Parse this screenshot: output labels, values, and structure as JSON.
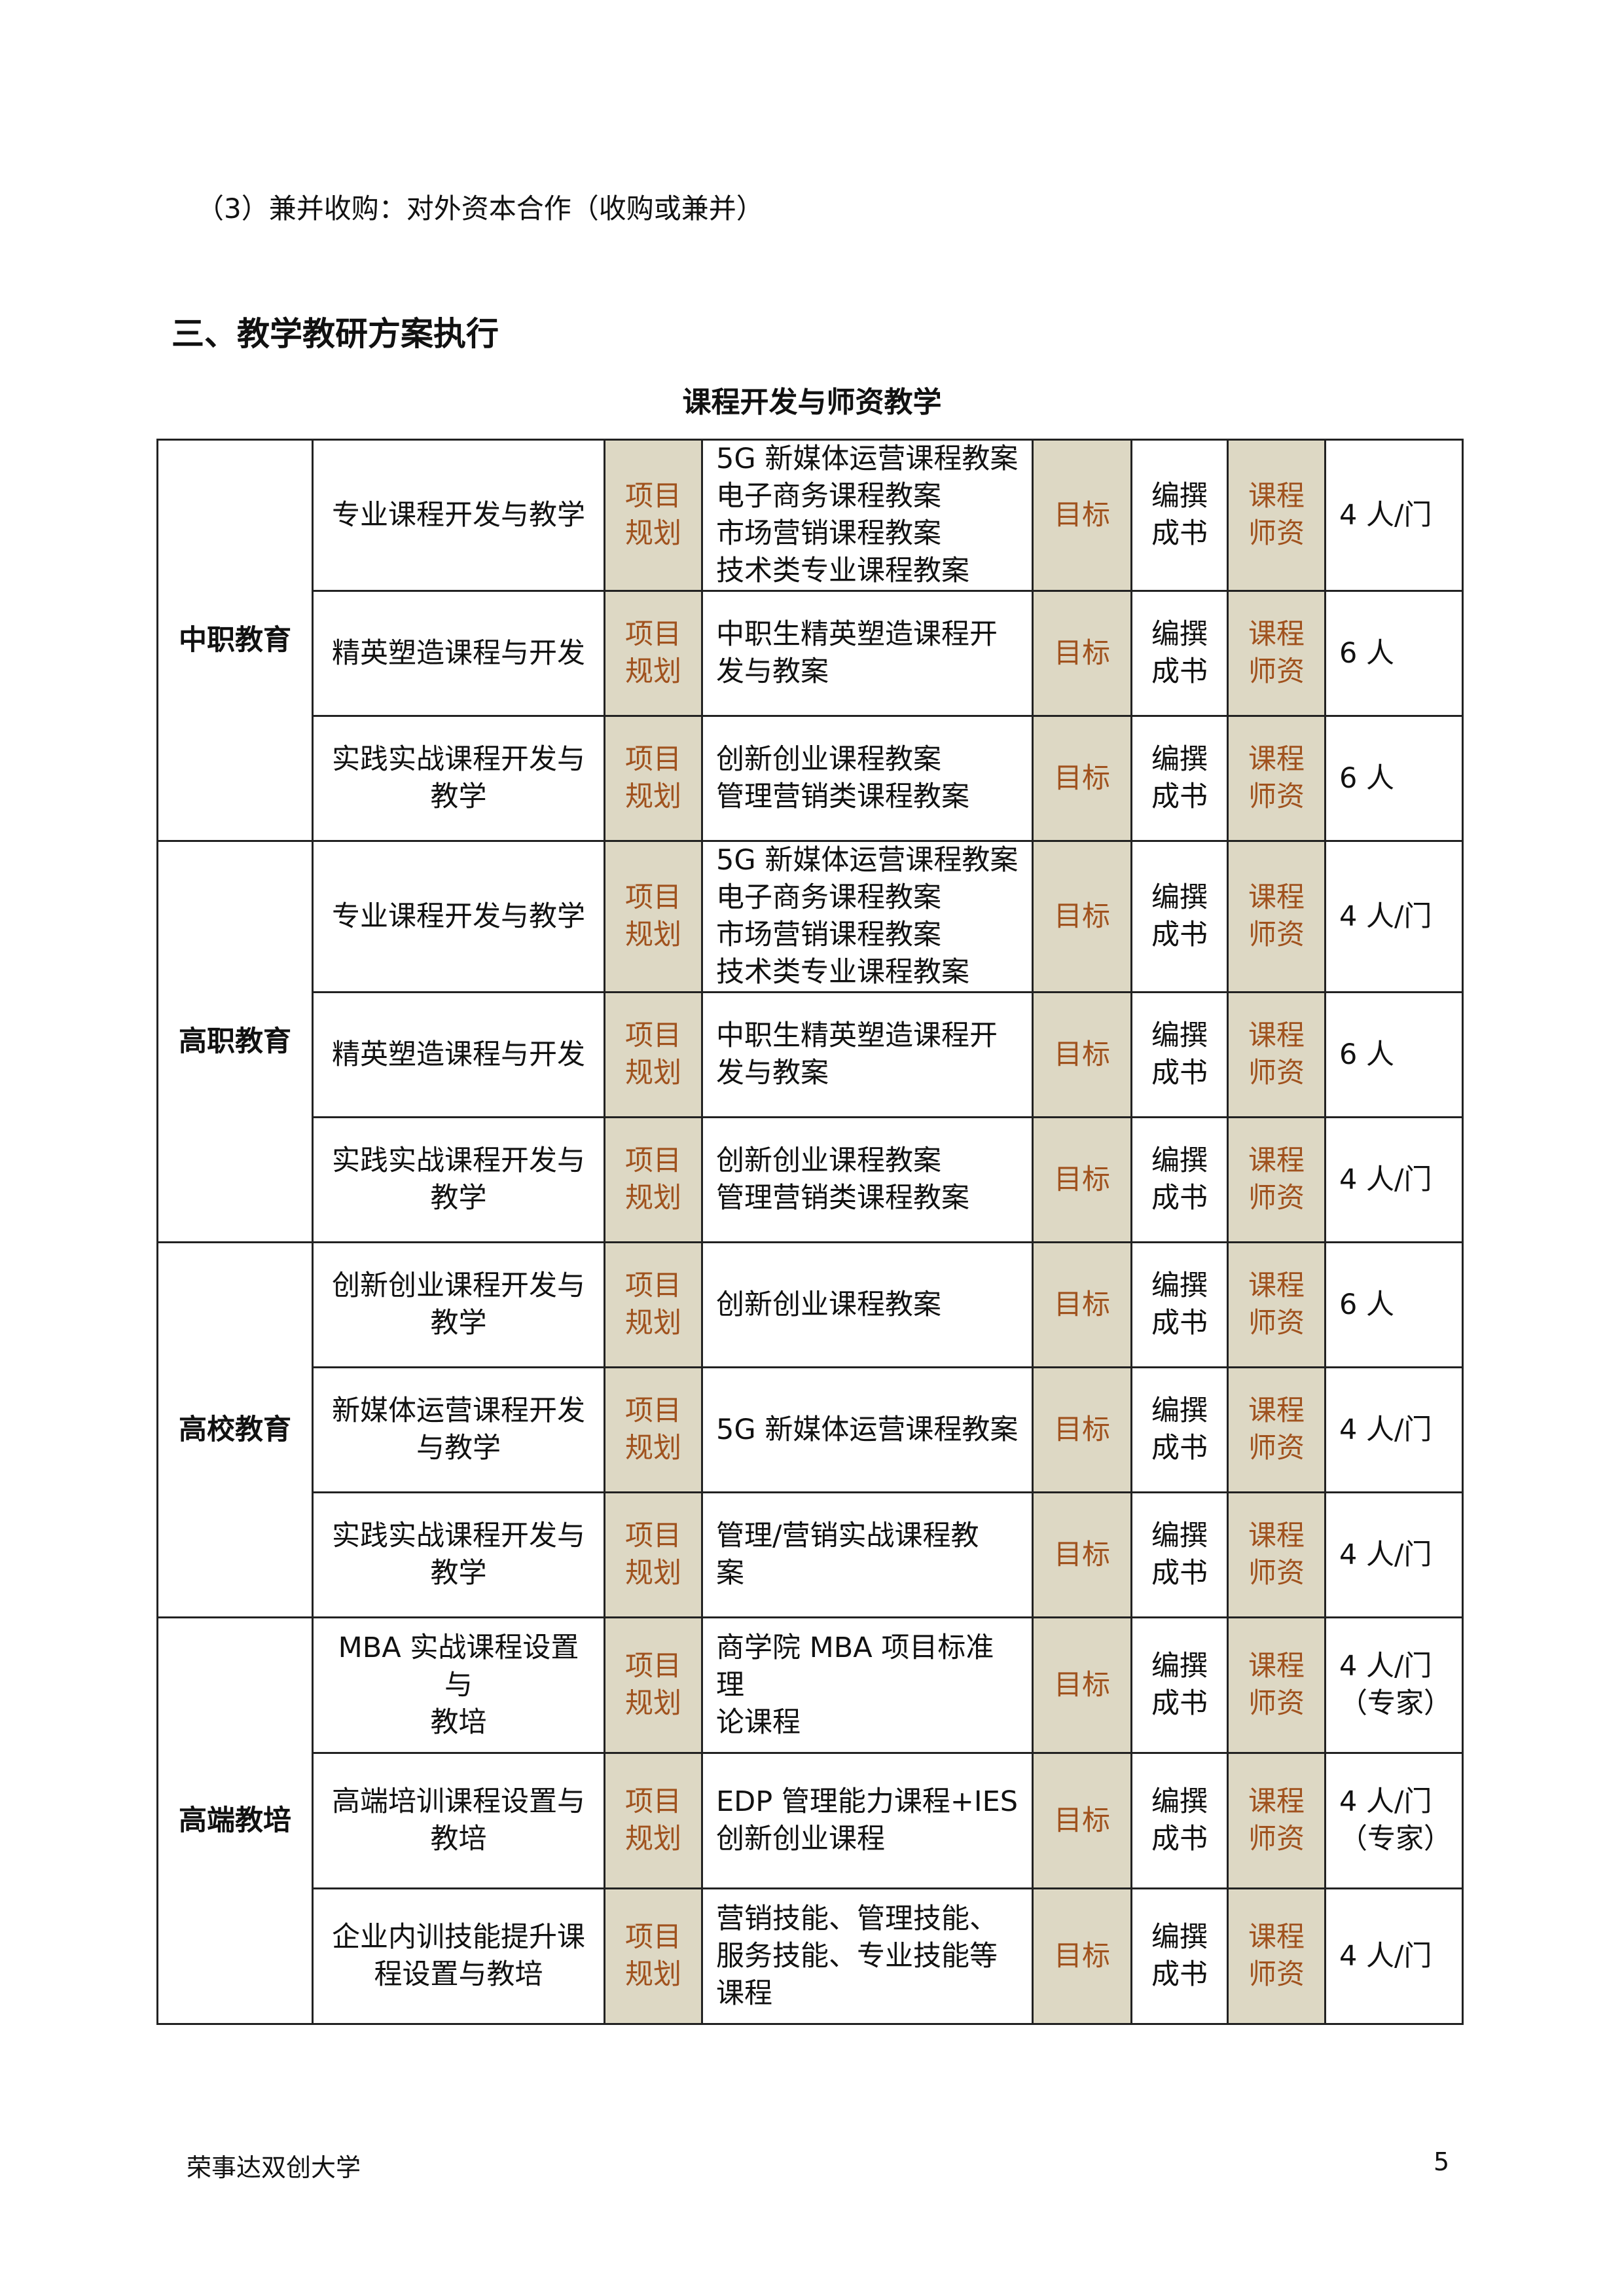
{
  "paragraph": "（3）兼并收购：对外资本合作（收购或兼并）",
  "heading": "三、教学教研方案执行",
  "table_caption": "课程开发与师资教学",
  "groups": [
    {
      "name": "中职教育",
      "rows": [
        {
          "course": "专业课程开发与教学",
          "plan": "项目\n规划",
          "content": "5G 新媒体运营课程教案\n电子商务课程教案\n市场营销课程教案\n技术类专业课程教案",
          "goal": "目标",
          "book": "编撰\n成书",
          "teacher": "课程\n师资",
          "staff": "4 人/门"
        },
        {
          "course": "精英塑造课程与开发",
          "plan": "项目\n规划",
          "content": "中职生精英塑造课程开\n发与教案",
          "goal": "目标",
          "book": "编撰\n成书",
          "teacher": "课程\n师资",
          "staff": "6 人"
        },
        {
          "course": "实践实战课程开发与\n教学",
          "plan": "项目\n规划",
          "content": "创新创业课程教案\n管理营销类课程教案",
          "goal": "目标",
          "book": "编撰\n成书",
          "teacher": "课程\n师资",
          "staff": "6 人"
        }
      ]
    },
    {
      "name": "高职教育",
      "rows": [
        {
          "course": "专业课程开发与教学",
          "plan": "项目\n规划",
          "content": "5G 新媒体运营课程教案\n电子商务课程教案\n市场营销课程教案\n技术类专业课程教案",
          "goal": "目标",
          "book": "编撰\n成书",
          "teacher": "课程\n师资",
          "staff": "4 人/门"
        },
        {
          "course": "精英塑造课程与开发",
          "plan": "项目\n规划",
          "content": "中职生精英塑造课程开\n发与教案",
          "goal": "目标",
          "book": "编撰\n成书",
          "teacher": "课程\n师资",
          "staff": "6 人"
        },
        {
          "course": "实践实战课程开发与\n教学",
          "plan": "项目\n规划",
          "content": "创新创业课程教案\n管理营销类课程教案",
          "goal": "目标",
          "book": "编撰\n成书",
          "teacher": "课程\n师资",
          "staff": "4 人/门"
        }
      ]
    },
    {
      "name": "高校教育",
      "rows": [
        {
          "course": "创新创业课程开发与\n教学",
          "plan": "项目\n规划",
          "content": "创新创业课程教案",
          "goal": "目标",
          "book": "编撰\n成书",
          "teacher": "课程\n师资",
          "staff": "6 人"
        },
        {
          "course": "新媒体运营课程开发\n与教学",
          "plan": "项目\n规划",
          "content": "5G 新媒体运营课程教案",
          "goal": "目标",
          "book": "编撰\n成书",
          "teacher": "课程\n师资",
          "staff": "4 人/门"
        },
        {
          "course": "实践实战课程开发与\n教学",
          "plan": "项目\n规划",
          "content": "管理/营销实战课程教\n案",
          "goal": "目标",
          "book": "编撰\n成书",
          "teacher": "课程\n师资",
          "staff": "4 人/门"
        }
      ]
    },
    {
      "name": "高端教培",
      "rows": [
        {
          "course": "MBA 实战课程设置与\n教培",
          "plan": "项目\n规划",
          "content": "商学院 MBA 项目标准理\n论课程",
          "goal": "目标",
          "book": "编撰\n成书",
          "teacher": "课程\n师资",
          "staff": "4 人/门\n（专家）"
        },
        {
          "course": "高端培训课程设置与\n教培",
          "plan": "项目\n规划",
          "content": "EDP 管理能力课程+IES\n创新创业课程",
          "goal": "目标",
          "book": "编撰\n成书",
          "teacher": "课程\n师资",
          "staff": "4 人/门\n（专家）"
        },
        {
          "course": "企业内训技能提升课\n程设置与教培",
          "plan": "项目\n规划",
          "content": "营销技能、管理技能、\n服务技能、专业技能等\n课程",
          "goal": "目标",
          "book": "编撰\n成书",
          "teacher": "课程\n师资",
          "staff": "4 人/门"
        }
      ]
    }
  ],
  "footer": {
    "left": "荣事达双创大学",
    "page": "5"
  },
  "colors": {
    "tan": "#ddd8c4",
    "accent_text": "#a0521e"
  }
}
